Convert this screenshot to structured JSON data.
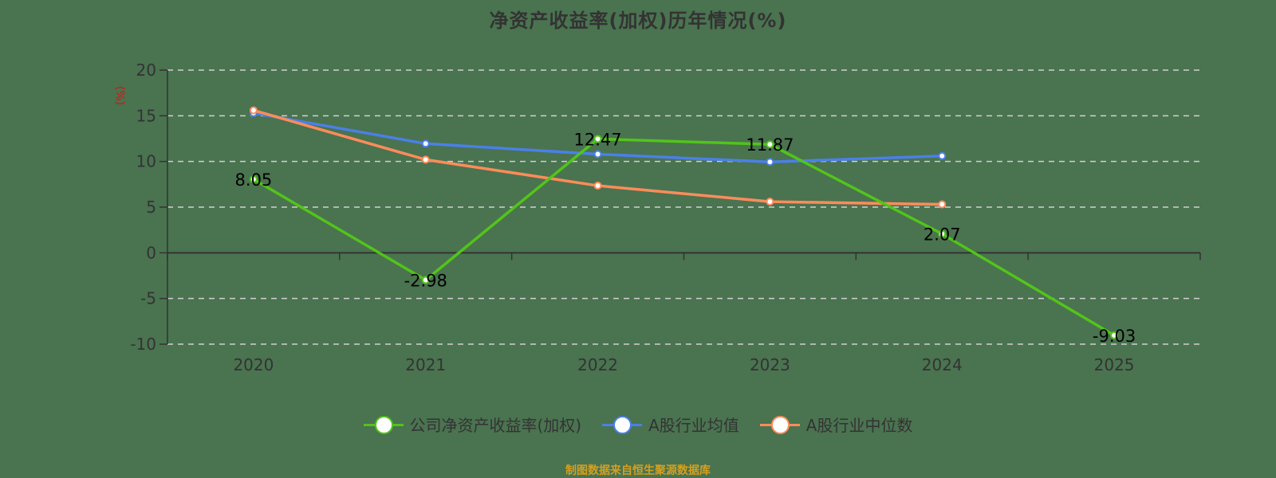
{
  "title": "净资产收益率(加权)历年情况(%)",
  "y_unit_label": "(%)",
  "footer": "制图数据来自恒生聚源数据库",
  "legend": [
    {
      "label": "公司净资产收益率(加权)",
      "color": "#52c41a"
    },
    {
      "label": "A股行业均值",
      "color": "#4a80e8"
    },
    {
      "label": "A股行业中位数",
      "color": "#ff8c5a"
    }
  ],
  "chart_data": {
    "type": "line",
    "title": "净资产收益率(加权)历年情况(%)",
    "xlabel": "",
    "ylabel": "(%)",
    "x": [
      "2020",
      "2021",
      "2022",
      "2023",
      "2024",
      "2025"
    ],
    "ylim": [
      -10,
      20
    ],
    "yticks": [
      20,
      15,
      10,
      5,
      0,
      -5,
      -10
    ],
    "grid": "horizontal dashed",
    "legend_position": "bottom",
    "series": [
      {
        "name": "公司净资产收益率(加权)",
        "color": "#52c41a",
        "values": [
          8.05,
          -2.98,
          12.47,
          11.87,
          2.07,
          -9.03
        ],
        "labels": [
          "8.05",
          "-2.98",
          "12.47",
          "11.87",
          "2.07",
          "-9.03"
        ]
      },
      {
        "name": "A股行业均值",
        "color": "#4a80e8",
        "values": [
          15.3,
          11.95,
          10.8,
          9.95,
          10.6,
          null
        ]
      },
      {
        "name": "A股行业中位数",
        "color": "#ff8c5a",
        "values": [
          15.6,
          10.2,
          7.35,
          5.6,
          5.3,
          null
        ]
      }
    ]
  }
}
